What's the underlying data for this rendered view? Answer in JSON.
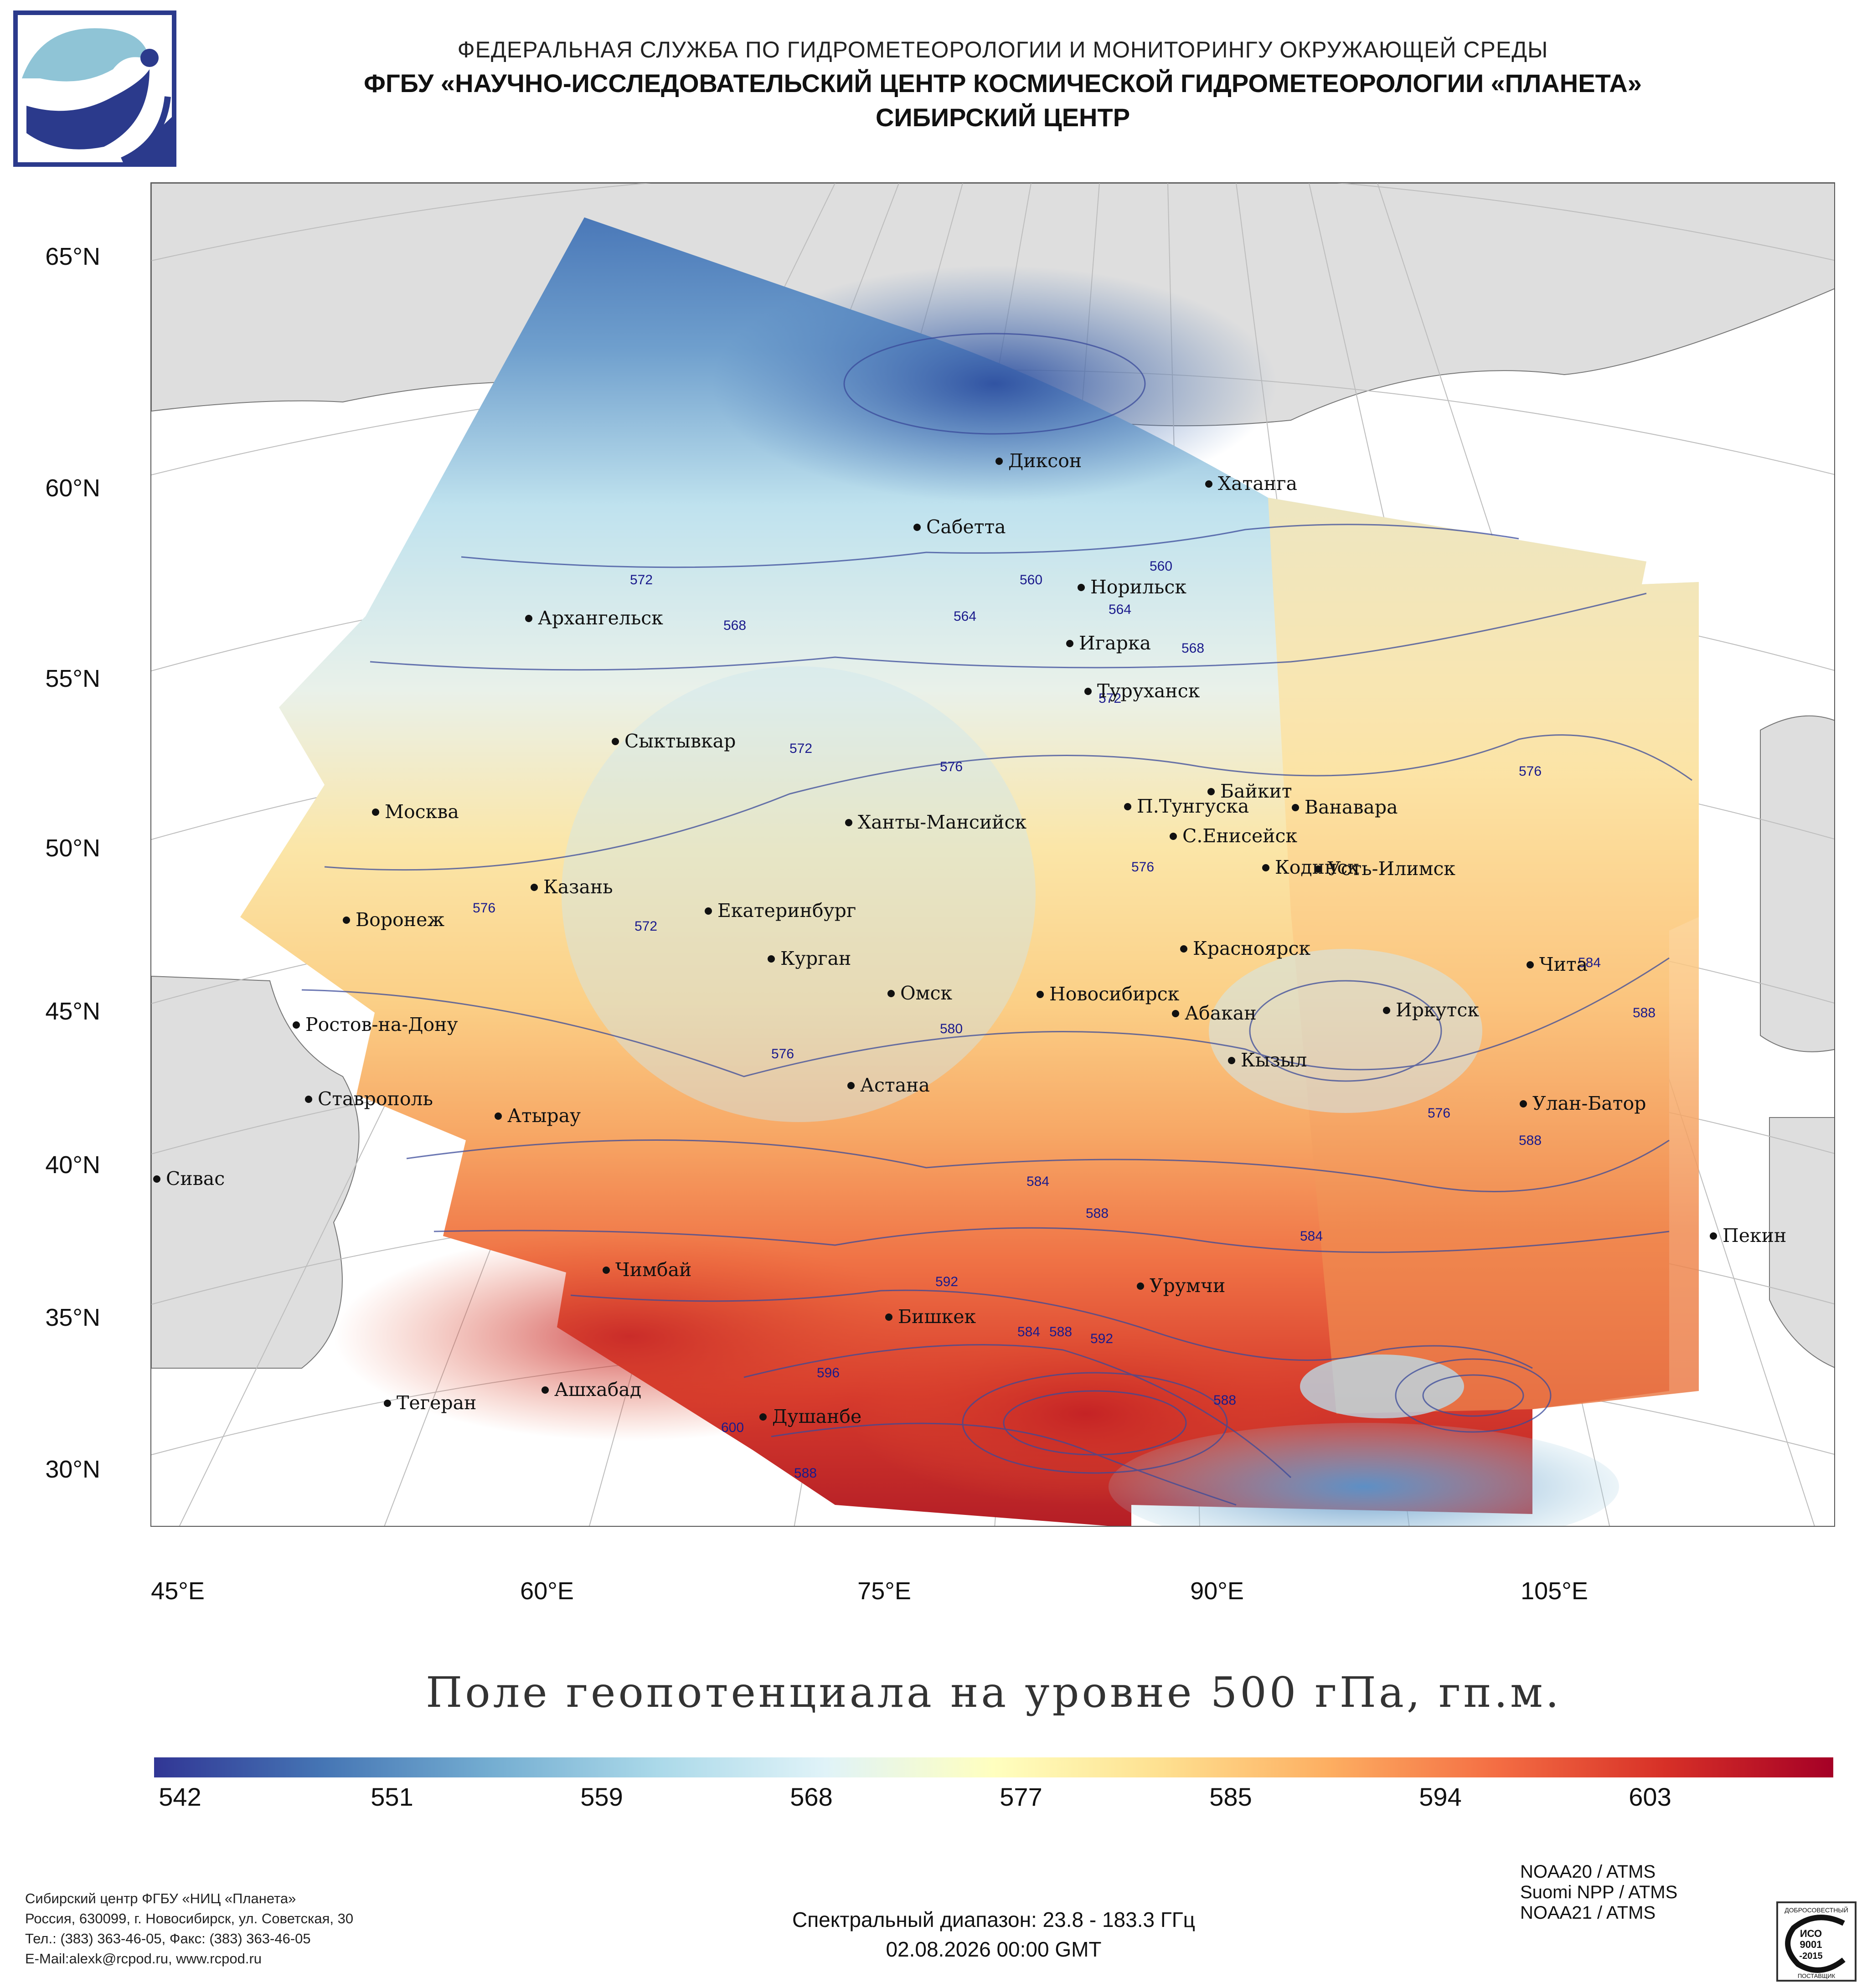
{
  "header": {
    "agency": "ФЕДЕРАЛЬНАЯ СЛУЖБА ПО ГИДРОМЕТЕОРОЛОГИИ И МОНИТОРИНГУ ОКРУЖАЮЩЕЙ СРЕДЫ",
    "center": "ФГБУ «НАУЧНО-ИССЛЕДОВАТЕЛЬСКИЙ ЦЕНТР КОСМИЧЕСКОЙ ГИДРОМЕТЕОРОЛОГИИ «ПЛАНЕТА»",
    "branch": "СИБИРСКИЙ ЦЕНТР"
  },
  "map": {
    "lat_labels": [
      "65°N",
      "60°N",
      "55°N",
      "50°N",
      "45°N",
      "40°N",
      "35°N",
      "30°N"
    ],
    "lon_labels": [
      "45°E",
      "60°E",
      "75°E",
      "90°E",
      "105°E"
    ],
    "cities": [
      {
        "name": "Диксон"
      },
      {
        "name": "Хатанга"
      },
      {
        "name": "Сабетта"
      },
      {
        "name": "Норильск"
      },
      {
        "name": "Игарка"
      },
      {
        "name": "Архангельск"
      },
      {
        "name": "Туруханск"
      },
      {
        "name": "Сыктывкар"
      },
      {
        "name": "Байкит"
      },
      {
        "name": "П.Тунгуска"
      },
      {
        "name": "Ванавара"
      },
      {
        "name": "Москва"
      },
      {
        "name": "Ханты-Мансийск"
      },
      {
        "name": "С.Енисейск"
      },
      {
        "name": "Кодинск"
      },
      {
        "name": "Усть-Илимск"
      },
      {
        "name": "Казань"
      },
      {
        "name": "Екатеринбург"
      },
      {
        "name": "Воронеж"
      },
      {
        "name": "Красноярск"
      },
      {
        "name": "Курган"
      },
      {
        "name": "Чита"
      },
      {
        "name": "Омск"
      },
      {
        "name": "Новосибирск"
      },
      {
        "name": "Иркутск"
      },
      {
        "name": "Ростов-на-Дону"
      },
      {
        "name": "Абакан"
      },
      {
        "name": "Кызыл"
      },
      {
        "name": "Астана"
      },
      {
        "name": "Ставрополь"
      },
      {
        "name": "Улан-Батор"
      },
      {
        "name": "Атырау"
      },
      {
        "name": "Сивас"
      },
      {
        "name": "Пекин"
      },
      {
        "name": "Чимбай"
      },
      {
        "name": "Урумчи"
      },
      {
        "name": "Бишкек"
      },
      {
        "name": "Ашхабад"
      },
      {
        "name": "Душанбе"
      },
      {
        "name": "Тегеран"
      }
    ],
    "isoline_labels": [
      "572",
      "568",
      "560",
      "560",
      "564",
      "564",
      "568",
      "572",
      "572",
      "576",
      "576",
      "576",
      "572",
      "576",
      "580",
      "576",
      "576",
      "584",
      "588",
      "584",
      "584",
      "588",
      "592",
      "584",
      "588",
      "592",
      "596",
      "600",
      "588",
      "588",
      "588"
    ]
  },
  "map_title": "Поле геопотенциала на уровне 500 гПа, гп.м.",
  "colorbar": {
    "ticks": [
      "542",
      "551",
      "559",
      "568",
      "577",
      "585",
      "594",
      "603"
    ],
    "colors": [
      "#313695",
      "#4575b4",
      "#74add1",
      "#abd9e9",
      "#e0f3f8",
      "#ffffbf",
      "#fee090",
      "#fdae61",
      "#f46d43",
      "#d73027",
      "#a50026"
    ]
  },
  "contact": {
    "line1": "Сибирский центр ФГБУ «НИЦ «Планета»",
    "line2": "Россия, 630099, г. Новосибирск, ул. Советская, 30",
    "line3": "Тел.: (383) 363-46-05, Факс: (383) 363-46-05",
    "line4": "E-Mail:alexk@rcpod.ru, www.rcpod.ru"
  },
  "sensors": [
    "NOAA20 / ATMS",
    "Suomi NPP / ATMS",
    "NOAA21 / ATMS"
  ],
  "footer": {
    "spectral": "Спектральный диапазон: 23.8 - 183.3 ГГц",
    "datetime": "02.08.2026 00:00 GMT"
  },
  "iso_badge": {
    "top": "ДОБРОСОВЕСТНЫЙ",
    "l1": "ИСО",
    "l2": "9001",
    "l3": "-2015",
    "bottom": "ПОСТАВЩИК"
  }
}
